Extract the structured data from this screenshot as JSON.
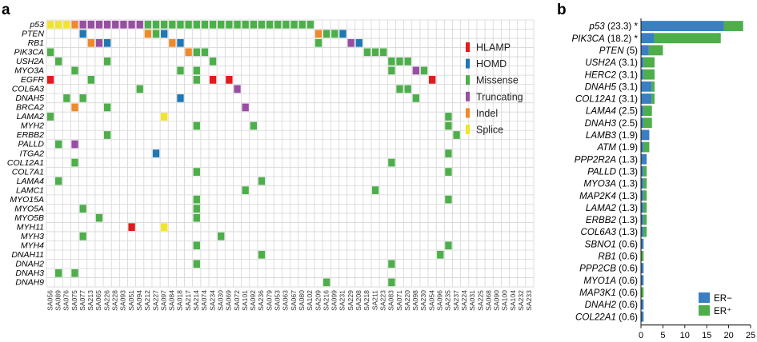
{
  "panels": {
    "a": "a",
    "b": "b"
  },
  "legend_a": [
    {
      "key": "HLAMP",
      "label": "HLAMP",
      "color": "#e31a1c"
    },
    {
      "key": "HOMD",
      "label": "HOMD",
      "color": "#1f78b4"
    },
    {
      "key": "Missense",
      "label": "Missense",
      "color": "#4daf4a"
    },
    {
      "key": "Truncating",
      "label": "Truncating",
      "color": "#984ea3"
    },
    {
      "key": "Indel",
      "label": "Indel",
      "color": "#ef8a2b"
    },
    {
      "key": "Splice",
      "label": "Splice",
      "color": "#f2e527"
    }
  ],
  "chart_data": [
    {
      "type": "heatmap",
      "genes": [
        "p53",
        "PTEN",
        "RB1",
        "PIK3CA",
        "USH2A",
        "MYO3A",
        "EGFR",
        "COL6A3",
        "DNAH5",
        "BRCA2",
        "LAMA2",
        "MYH2",
        "ERBB2",
        "PALLD",
        "ITGA2",
        "COL12A1",
        "COL7A1",
        "LAMA4",
        "LAMC1",
        "MYO15A",
        "MYO5A",
        "MYO5B",
        "MYH11",
        "MYH3",
        "MYH4",
        "DNAH11",
        "DNAH2",
        "DNAH3",
        "DNAH9"
      ],
      "samples": [
        "SA056",
        "SA089",
        "SA076",
        "SA075",
        "SA077",
        "SA213",
        "SA065",
        "SA226",
        "SA228",
        "SA093",
        "SA051",
        "SA094",
        "SA212",
        "SA227",
        "SA097",
        "SA084",
        "SA018",
        "SA217",
        "SA214",
        "SA074",
        "SA234",
        "SA030",
        "SA069",
        "SA072",
        "SA101",
        "SA092",
        "SA236",
        "SA079",
        "SA053",
        "SA063",
        "SA067",
        "SA080",
        "SA102",
        "SA209",
        "SA216",
        "SA099",
        "SA231",
        "SA229",
        "SA208",
        "SA218",
        "SA211",
        "SA223",
        "SA083",
        "SA071",
        "SA220",
        "SA098",
        "SA230",
        "SA054",
        "SA096",
        "SA235",
        "SA237",
        "SA224",
        "SA031",
        "SA225",
        "SA068",
        "SA090",
        "SA100",
        "SA104",
        "SA232",
        "SA233"
      ],
      "alteration_types": [
        "HLAMP",
        "HOMD",
        "Missense",
        "Truncating",
        "Indel",
        "Splice"
      ],
      "alterations": [
        {
          "gene": "p53",
          "sample": "SA056",
          "type": "Splice"
        },
        {
          "gene": "p53",
          "sample": "SA089",
          "type": "Splice"
        },
        {
          "gene": "p53",
          "sample": "SA076",
          "type": "Splice"
        },
        {
          "gene": "p53",
          "sample": "SA075",
          "type": "Indel"
        },
        {
          "gene": "p53",
          "sample": "SA077",
          "type": "Truncating"
        },
        {
          "gene": "p53",
          "sample": "SA213",
          "type": "Truncating"
        },
        {
          "gene": "p53",
          "sample": "SA065",
          "type": "Truncating"
        },
        {
          "gene": "p53",
          "sample": "SA226",
          "type": "Truncating"
        },
        {
          "gene": "p53",
          "sample": "SA228",
          "type": "Truncating"
        },
        {
          "gene": "p53",
          "sample": "SA093",
          "type": "Truncating"
        },
        {
          "gene": "p53",
          "sample": "SA051",
          "type": "Truncating"
        },
        {
          "gene": "p53",
          "sample": "SA094",
          "type": "Truncating"
        },
        {
          "gene": "p53",
          "sample": "SA212",
          "type": "Missense"
        },
        {
          "gene": "p53",
          "sample": "SA227",
          "type": "Missense"
        },
        {
          "gene": "p53",
          "sample": "SA097",
          "type": "Missense"
        },
        {
          "gene": "p53",
          "sample": "SA084",
          "type": "Missense"
        },
        {
          "gene": "p53",
          "sample": "SA018",
          "type": "Missense"
        },
        {
          "gene": "p53",
          "sample": "SA217",
          "type": "Missense"
        },
        {
          "gene": "p53",
          "sample": "SA214",
          "type": "Missense"
        },
        {
          "gene": "p53",
          "sample": "SA074",
          "type": "Missense"
        },
        {
          "gene": "p53",
          "sample": "SA234",
          "type": "Missense"
        },
        {
          "gene": "p53",
          "sample": "SA030",
          "type": "Missense"
        },
        {
          "gene": "p53",
          "sample": "SA069",
          "type": "Missense"
        },
        {
          "gene": "p53",
          "sample": "SA072",
          "type": "Missense"
        },
        {
          "gene": "p53",
          "sample": "SA101",
          "type": "Missense"
        },
        {
          "gene": "p53",
          "sample": "SA092",
          "type": "Missense"
        },
        {
          "gene": "p53",
          "sample": "SA236",
          "type": "Missense"
        },
        {
          "gene": "p53",
          "sample": "SA079",
          "type": "Missense"
        },
        {
          "gene": "p53",
          "sample": "SA053",
          "type": "Missense"
        },
        {
          "gene": "p53",
          "sample": "SA063",
          "type": "Missense"
        },
        {
          "gene": "p53",
          "sample": "SA067",
          "type": "Missense"
        },
        {
          "gene": "p53",
          "sample": "SA080",
          "type": "Missense"
        },
        {
          "gene": "p53",
          "sample": "SA102",
          "type": "Missense"
        },
        {
          "gene": "PTEN",
          "sample": "SA077",
          "type": "HOMD"
        },
        {
          "gene": "PTEN",
          "sample": "SA212",
          "type": "Indel"
        },
        {
          "gene": "PTEN",
          "sample": "SA227",
          "type": "Missense"
        },
        {
          "gene": "PTEN",
          "sample": "SA097",
          "type": "HOMD"
        },
        {
          "gene": "PTEN",
          "sample": "SA209",
          "type": "Indel"
        },
        {
          "gene": "PTEN",
          "sample": "SA216",
          "type": "Missense"
        },
        {
          "gene": "PTEN",
          "sample": "SA099",
          "type": "Missense"
        },
        {
          "gene": "PTEN",
          "sample": "SA231",
          "type": "HOMD"
        },
        {
          "gene": "RB1",
          "sample": "SA213",
          "type": "Indel"
        },
        {
          "gene": "RB1",
          "sample": "SA065",
          "type": "Truncating"
        },
        {
          "gene": "RB1",
          "sample": "SA226",
          "type": "HOMD"
        },
        {
          "gene": "RB1",
          "sample": "SA084",
          "type": "Indel"
        },
        {
          "gene": "RB1",
          "sample": "SA018",
          "type": "HOMD"
        },
        {
          "gene": "RB1",
          "sample": "SA209",
          "type": "Missense"
        },
        {
          "gene": "RB1",
          "sample": "SA229",
          "type": "Truncating"
        },
        {
          "gene": "RB1",
          "sample": "SA208",
          "type": "HOMD"
        },
        {
          "gene": "PIK3CA",
          "sample": "SA056",
          "type": "Missense"
        },
        {
          "gene": "PIK3CA",
          "sample": "SA217",
          "type": "Indel"
        },
        {
          "gene": "PIK3CA",
          "sample": "SA214",
          "type": "Missense"
        },
        {
          "gene": "PIK3CA",
          "sample": "SA074",
          "type": "Missense"
        },
        {
          "gene": "PIK3CA",
          "sample": "SA218",
          "type": "Missense"
        },
        {
          "gene": "PIK3CA",
          "sample": "SA211",
          "type": "Missense"
        },
        {
          "gene": "PIK3CA",
          "sample": "SA223",
          "type": "Missense"
        },
        {
          "gene": "USH2A",
          "sample": "SA089",
          "type": "Missense"
        },
        {
          "gene": "USH2A",
          "sample": "SA226",
          "type": "Missense"
        },
        {
          "gene": "USH2A",
          "sample": "SA234",
          "type": "Missense"
        },
        {
          "gene": "USH2A",
          "sample": "SA083",
          "type": "Missense"
        },
        {
          "gene": "USH2A",
          "sample": "SA071",
          "type": "Missense"
        },
        {
          "gene": "USH2A",
          "sample": "SA220",
          "type": "Missense"
        },
        {
          "gene": "MYO3A",
          "sample": "SA075",
          "type": "Missense"
        },
        {
          "gene": "MYO3A",
          "sample": "SA018",
          "type": "Missense"
        },
        {
          "gene": "MYO3A",
          "sample": "SA214",
          "type": "Missense"
        },
        {
          "gene": "MYO3A",
          "sample": "SA083",
          "type": "Missense"
        },
        {
          "gene": "MYO3A",
          "sample": "SA098",
          "type": "Truncating"
        },
        {
          "gene": "MYO3A",
          "sample": "SA230",
          "type": "Missense"
        },
        {
          "gene": "EGFR",
          "sample": "SA056",
          "type": "HLAMP"
        },
        {
          "gene": "EGFR",
          "sample": "SA213",
          "type": "Missense"
        },
        {
          "gene": "EGFR",
          "sample": "SA214",
          "type": "Missense"
        },
        {
          "gene": "EGFR",
          "sample": "SA234",
          "type": "HLAMP"
        },
        {
          "gene": "EGFR",
          "sample": "SA069",
          "type": "HLAMP"
        },
        {
          "gene": "EGFR",
          "sample": "SA054",
          "type": "HLAMP"
        },
        {
          "gene": "COL6A3",
          "sample": "SA094",
          "type": "Missense"
        },
        {
          "gene": "COL6A3",
          "sample": "SA072",
          "type": "Truncating"
        },
        {
          "gene": "COL6A3",
          "sample": "SA071",
          "type": "Missense"
        },
        {
          "gene": "COL6A3",
          "sample": "SA220",
          "type": "Missense"
        },
        {
          "gene": "DNAH5",
          "sample": "SA076",
          "type": "Missense"
        },
        {
          "gene": "DNAH5",
          "sample": "SA077",
          "type": "Missense"
        },
        {
          "gene": "DNAH5",
          "sample": "SA018",
          "type": "HOMD"
        },
        {
          "gene": "DNAH5",
          "sample": "SA098",
          "type": "Missense"
        },
        {
          "gene": "BRCA2",
          "sample": "SA075",
          "type": "Indel"
        },
        {
          "gene": "BRCA2",
          "sample": "SA226",
          "type": "Missense"
        },
        {
          "gene": "BRCA2",
          "sample": "SA101",
          "type": "Truncating"
        },
        {
          "gene": "LAMA2",
          "sample": "SA056",
          "type": "Missense"
        },
        {
          "gene": "LAMA2",
          "sample": "SA097",
          "type": "Splice"
        },
        {
          "gene": "LAMA2",
          "sample": "SA235",
          "type": "Missense"
        },
        {
          "gene": "MYH2",
          "sample": "SA214",
          "type": "Missense"
        },
        {
          "gene": "MYH2",
          "sample": "SA092",
          "type": "Missense"
        },
        {
          "gene": "MYH2",
          "sample": "SA235",
          "type": "Missense"
        },
        {
          "gene": "ERBB2",
          "sample": "SA226",
          "type": "Missense"
        },
        {
          "gene": "ERBB2",
          "sample": "SA237",
          "type": "Missense"
        },
        {
          "gene": "PALLD",
          "sample": "SA089",
          "type": "Missense"
        },
        {
          "gene": "PALLD",
          "sample": "SA075",
          "type": "Truncating"
        },
        {
          "gene": "ITGA2",
          "sample": "SA227",
          "type": "HOMD"
        },
        {
          "gene": "ITGA2",
          "sample": "SA235",
          "type": "Missense"
        },
        {
          "gene": "COL12A1",
          "sample": "SA075",
          "type": "Missense"
        },
        {
          "gene": "COL12A1",
          "sample": "SA083",
          "type": "Missense"
        },
        {
          "gene": "COL7A1",
          "sample": "SA214",
          "type": "Missense"
        },
        {
          "gene": "COL7A1",
          "sample": "SA235",
          "type": "Missense"
        },
        {
          "gene": "LAMA4",
          "sample": "SA089",
          "type": "Missense"
        },
        {
          "gene": "LAMA4",
          "sample": "SA236",
          "type": "Missense"
        },
        {
          "gene": "LAMC1",
          "sample": "SA101",
          "type": "Missense"
        },
        {
          "gene": "LAMC1",
          "sample": "SA211",
          "type": "Missense"
        },
        {
          "gene": "MYO15A",
          "sample": "SA214",
          "type": "Missense"
        },
        {
          "gene": "MYO15A",
          "sample": "SA235",
          "type": "Missense"
        },
        {
          "gene": "MYO5A",
          "sample": "SA077",
          "type": "Missense"
        },
        {
          "gene": "MYO5A",
          "sample": "SA214",
          "type": "Missense"
        },
        {
          "gene": "MYO5B",
          "sample": "SA065",
          "type": "Missense"
        },
        {
          "gene": "MYO5B",
          "sample": "SA214",
          "type": "Missense"
        },
        {
          "gene": "MYH11",
          "sample": "SA051",
          "type": "HLAMP"
        },
        {
          "gene": "MYH11",
          "sample": "SA097",
          "type": "Splice"
        },
        {
          "gene": "MYH3",
          "sample": "SA077",
          "type": "Missense"
        },
        {
          "gene": "MYH3",
          "sample": "SA030",
          "type": "Missense"
        },
        {
          "gene": "MYH4",
          "sample": "SA214",
          "type": "Missense"
        },
        {
          "gene": "MYH4",
          "sample": "SA235",
          "type": "Missense"
        },
        {
          "gene": "DNAH11",
          "sample": "SA236",
          "type": "Missense"
        },
        {
          "gene": "DNAH11",
          "sample": "SA096",
          "type": "Missense"
        },
        {
          "gene": "DNAH2",
          "sample": "SA214",
          "type": "Missense"
        },
        {
          "gene": "DNAH2",
          "sample": "SA083",
          "type": "Missense"
        },
        {
          "gene": "DNAH3",
          "sample": "SA089",
          "type": "Missense"
        },
        {
          "gene": "DNAH3",
          "sample": "SA075",
          "type": "Missense"
        },
        {
          "gene": "DNAH9",
          "sample": "SA216",
          "type": "Missense"
        },
        {
          "gene": "DNAH9",
          "sample": "SA083",
          "type": "Missense"
        }
      ]
    },
    {
      "type": "bar",
      "orientation": "horizontal",
      "stacked": true,
      "categories": [
        "p53 (23.3) *",
        "PIK3CA (18.2) *",
        "PTEN (5)",
        "USH2A (3.1)",
        "HERC2 (3.1)",
        "DNAH5 (3.1)",
        "COL12A1 (3.1)",
        "LAMA4 (2.5)",
        "DNAH3 (2.5)",
        "LAMB3 (1.9)",
        "ATM (1.9)",
        "PPP2R2A (1.3)",
        "PALLD (1.3)",
        "MYO3A (1.3)",
        "MAP2K4 (1.3)",
        "LAMA2 (1.3)",
        "ERBB2 (1.3)",
        "COL6A3 (1.3)",
        "SBNO1 (0.6)",
        "RB1 (0.6)",
        "PPP2CB (0.6)",
        "MYO1A (0.6)",
        "MAP3K1 (0.6)",
        "DNAH2 (0.6)",
        "COL22A1 (0.6)"
      ],
      "series": [
        {
          "name": "ER−",
          "color": "#3a7fc1",
          "values": [
            18.9,
            3.0,
            1.8,
            0.6,
            0.6,
            2.4,
            2.4,
            0.6,
            0.6,
            1.9,
            0.6,
            1.3,
            0.6,
            0.6,
            0.6,
            0.6,
            0.6,
            0.6,
            0.6,
            0.0,
            0.6,
            0.6,
            0.0,
            0.6,
            0.6
          ]
        },
        {
          "name": "ER⁺",
          "color": "#4dae4a",
          "values": [
            4.4,
            15.2,
            3.2,
            2.5,
            2.5,
            0.7,
            0.7,
            1.9,
            1.9,
            0.0,
            1.3,
            0.0,
            0.7,
            0.7,
            0.7,
            0.7,
            0.7,
            0.7,
            0.0,
            0.6,
            0.0,
            0.0,
            0.6,
            0.0,
            0.0
          ]
        }
      ],
      "xlim": [
        0,
        25
      ],
      "xticks": [
        "0",
        "5",
        "10",
        "15",
        "20",
        "25"
      ],
      "legend_position": "bottom-right"
    }
  ]
}
